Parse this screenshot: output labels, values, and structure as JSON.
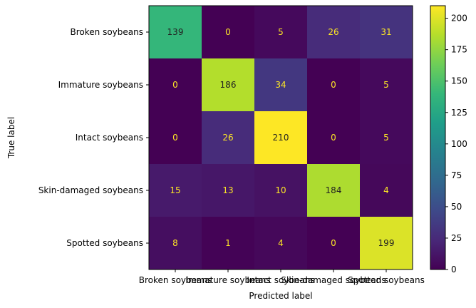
{
  "chart_data": {
    "type": "heatmap",
    "xlabel": "Predicted label",
    "ylabel": "True label",
    "x_categories": [
      "Broken soybeans",
      "Immature soybeans",
      "Intact soybeans",
      "Skin-damaged soybeans",
      "Spotted soybeans"
    ],
    "y_categories": [
      "Broken soybeans",
      "Immature soybeans",
      "Intact soybeans",
      "Skin-damaged soybeans",
      "Spotted soybeans"
    ],
    "values": [
      [
        139,
        0,
        5,
        26,
        31
      ],
      [
        0,
        186,
        34,
        0,
        5
      ],
      [
        0,
        26,
        210,
        0,
        5
      ],
      [
        15,
        13,
        10,
        184,
        4
      ],
      [
        8,
        1,
        4,
        0,
        199
      ]
    ],
    "colormap": "viridis",
    "value_range": [
      0,
      210
    ],
    "colorbar_ticks": [
      0,
      25,
      50,
      75,
      100,
      125,
      150,
      175,
      200
    ],
    "label_colors": {
      "on_dark": "#fde725",
      "on_light": "#222222"
    }
  }
}
